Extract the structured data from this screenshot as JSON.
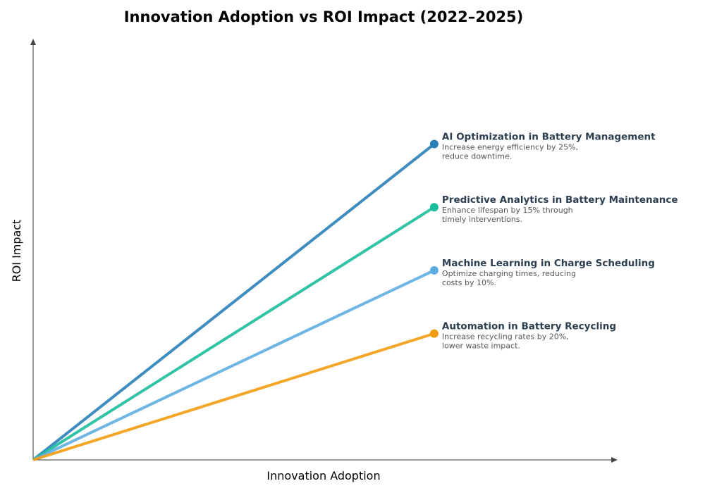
{
  "chart_data": {
    "type": "line",
    "title": "Innovation Adoption vs ROI Impact (2022–2025)",
    "xlabel": "Innovation Adoption",
    "ylabel": "ROI Impact",
    "xlim": [
      0,
      1.02
    ],
    "ylim": [
      0,
      1.0
    ],
    "grid": false,
    "series": [
      {
        "name": "AI Optimization in Battery Management",
        "description": [
          "Increase energy efficiency by 25%,",
          "reduce downtime."
        ],
        "x": [
          0,
          0.7
        ],
        "y": [
          0,
          0.75
        ],
        "color": "#2980b9"
      },
      {
        "name": "Predictive Analytics in Battery Maintenance",
        "description": [
          "Enhance lifespan by 15% through",
          "timely interventions."
        ],
        "x": [
          0,
          0.7
        ],
        "y": [
          0,
          0.6
        ],
        "color": "#1abc9c"
      },
      {
        "name": "Machine Learning in Charge Scheduling",
        "description": [
          "Optimize charging times, reducing",
          "costs by 10%."
        ],
        "x": [
          0,
          0.7
        ],
        "y": [
          0,
          0.45
        ],
        "color": "#5dade2"
      },
      {
        "name": "Automation in Battery Recycling",
        "description": [
          "Increase recycling rates by 20%,",
          "lower waste impact."
        ],
        "x": [
          0,
          0.7
        ],
        "y": [
          0,
          0.3
        ],
        "color": "#f39c12"
      }
    ]
  }
}
